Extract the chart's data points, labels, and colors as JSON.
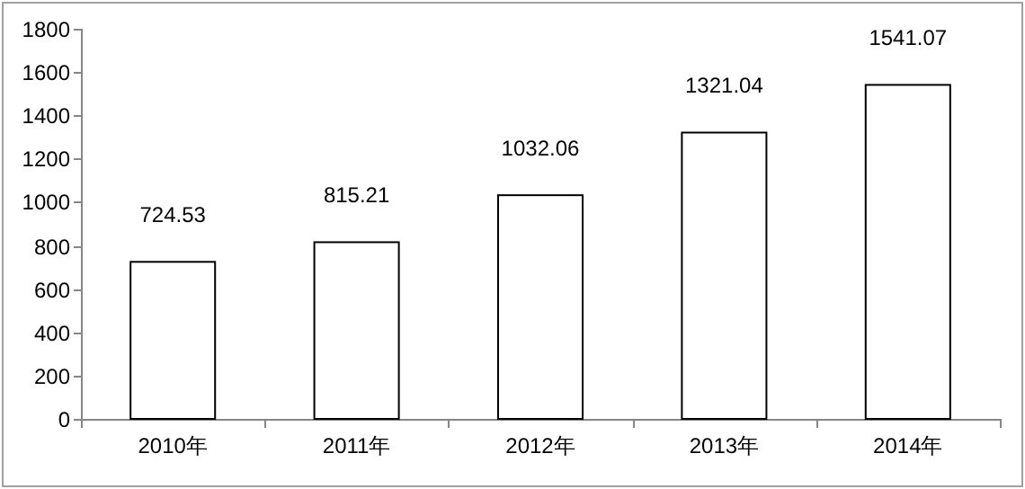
{
  "chart_data": {
    "type": "bar",
    "categories": [
      "2010年",
      "2011年",
      "2012年",
      "2013年",
      "2014年"
    ],
    "values": [
      724.53,
      815.21,
      1032.06,
      1321.04,
      1541.07
    ],
    "color": "#ffffff",
    "ylim": [
      0,
      1800
    ],
    "yticks": [
      0,
      200,
      400,
      600,
      800,
      1000,
      1200,
      1400,
      1600,
      1800
    ],
    "data_labels": true
  }
}
